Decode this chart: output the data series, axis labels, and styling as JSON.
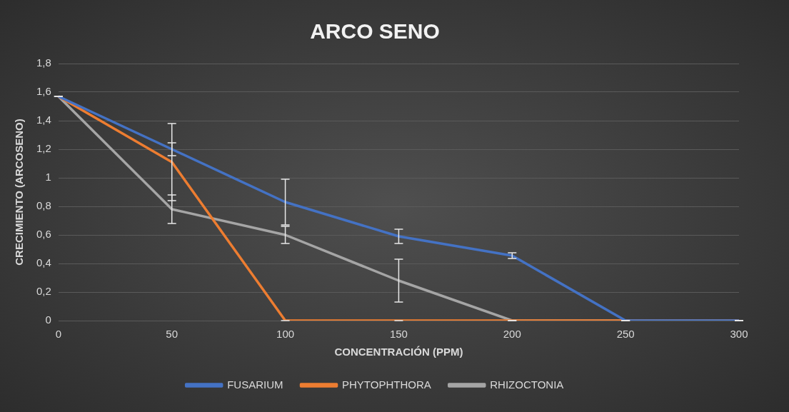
{
  "chart_data": {
    "type": "line",
    "title": "ARCO SENO",
    "xlabel": "CONCENTRACIÓN (PPM)",
    "ylabel": "CRECIMIENTO (ARCOSENO)",
    "categories": [
      "0",
      "50",
      "100",
      "150",
      "200",
      "250",
      "300"
    ],
    "series": [
      {
        "name": "FUSARIUM",
        "color": "#4472c4",
        "values": [
          1.57,
          1.2,
          0.83,
          0.59,
          0.455,
          0,
          0
        ],
        "errors": [
          0,
          0.045,
          0.16,
          0.05,
          0.02,
          0,
          0
        ]
      },
      {
        "name": "PHYTOPHTHORA",
        "color": "#ed7d31",
        "values": [
          1.57,
          1.11,
          0,
          0,
          0,
          0,
          0
        ],
        "errors": [
          0,
          0.27,
          0,
          0,
          0,
          0,
          0
        ]
      },
      {
        "name": "RHIZOCTONIA",
        "color": "#a5a5a5",
        "values": [
          1.57,
          0.78,
          0.6,
          0.28,
          0,
          0,
          0
        ],
        "errors": [
          0,
          0.1,
          0.06,
          0.15,
          0,
          0,
          0
        ]
      }
    ],
    "ylim": [
      0,
      1.8
    ],
    "yticks": [
      0,
      {
        "value": 0.2,
        "label": "0,2"
      },
      {
        "value": 0.4,
        "label": "0,4"
      },
      {
        "value": 0.6,
        "label": "0,6"
      },
      {
        "value": 0.8,
        "label": "0,8"
      },
      1,
      {
        "value": 1.2,
        "label": "1,2"
      },
      {
        "value": 1.4,
        "label": "1,4"
      },
      {
        "value": 1.6,
        "label": "1,6"
      },
      {
        "value": 1.8,
        "label": "1,8"
      }
    ],
    "grid": "y",
    "legend": "bottom",
    "marker": "none",
    "line_style": "solid"
  }
}
